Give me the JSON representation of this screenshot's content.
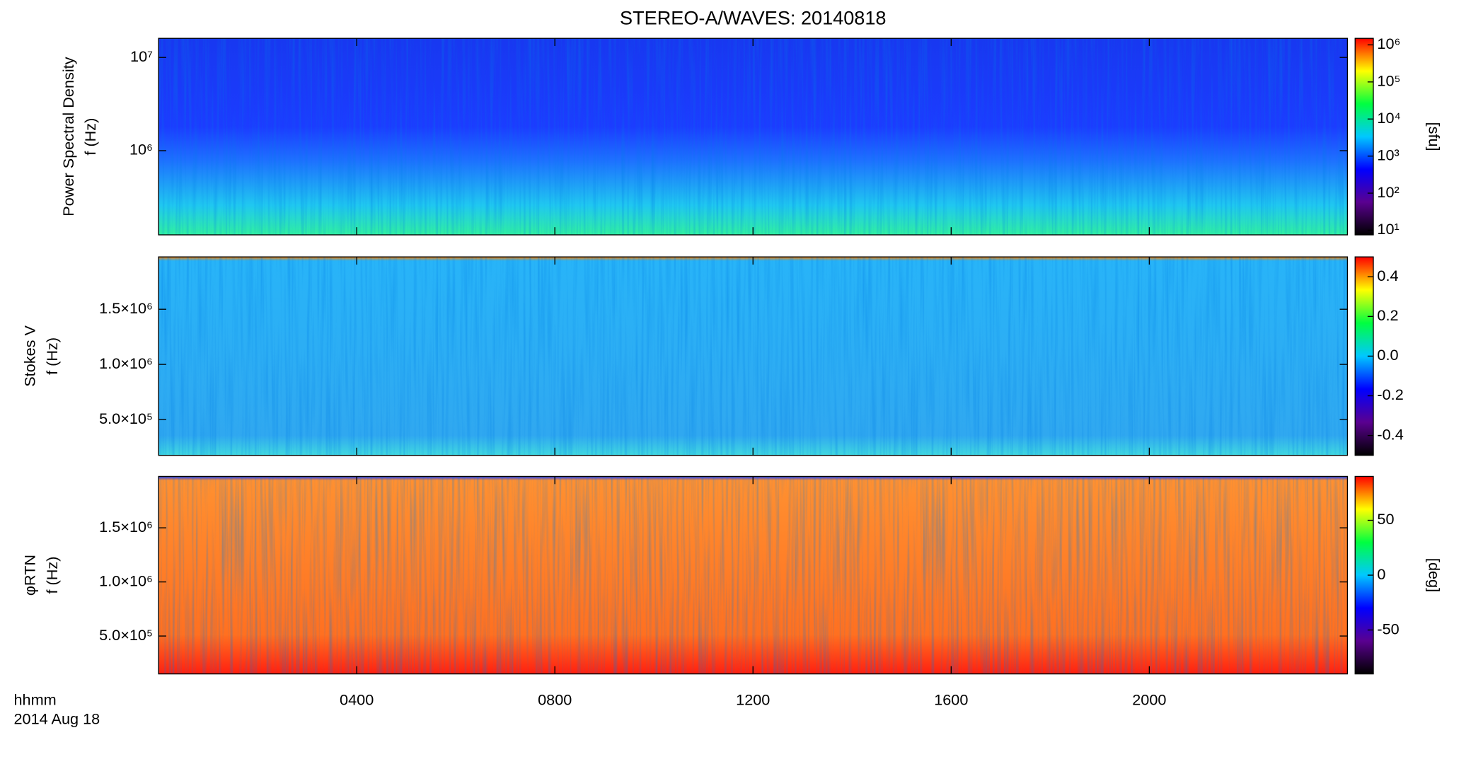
{
  "chart_data": [
    {
      "type": "heatmap",
      "title": "STEREO-A/WAVES: 20140818",
      "ylabel": [
        "Power Spectral Density",
        "f (Hz)"
      ],
      "ylog": true,
      "ylim": [
        125000,
        16025000
      ],
      "yticks": [
        {
          "value": 1000000,
          "label": "10⁶"
        },
        {
          "value": 10000000,
          "label": "10⁷"
        }
      ],
      "colormap": [
        "#000000",
        "#5a0090",
        "#0000ff",
        "#00c8ff",
        "#00ff40",
        "#ffff00",
        "#ff0000"
      ],
      "colorbar": {
        "label": "[sfu]",
        "log": true,
        "clim": [
          7.5,
          1500000
        ],
        "ticks": [
          {
            "value": 10,
            "label": "10¹"
          },
          {
            "value": 100,
            "label": "10²"
          },
          {
            "value": 1000,
            "label": "10³"
          },
          {
            "value": 10000,
            "label": "10⁴"
          },
          {
            "value": 100000,
            "label": "10⁵"
          },
          {
            "value": 1000000,
            "label": "10⁶"
          }
        ]
      }
    },
    {
      "type": "heatmap",
      "ylabel": [
        "Stokes V",
        "f (Hz)"
      ],
      "ylog": false,
      "ylim": [
        175000,
        1975000
      ],
      "yticks": [
        {
          "value": 500000,
          "label": "5.0×10⁵"
        },
        {
          "value": 1000000,
          "label": "1.0×10⁶"
        },
        {
          "value": 1500000,
          "label": "1.5×10⁶"
        }
      ],
      "colorbar": {
        "log": false,
        "clim": [
          -0.5,
          0.5
        ],
        "ticks": [
          -0.4,
          -0.2,
          {
            "value": 0,
            "label": "0.0"
          },
          0.2,
          0.4
        ]
      }
    },
    {
      "type": "heatmap",
      "ylabel": [
        "φRTN",
        "f (Hz)"
      ],
      "ylog": false,
      "ylim": [
        150000,
        1975000
      ],
      "yticks": [
        {
          "value": 500000,
          "label": "5.0×10⁵"
        },
        {
          "value": 1000000,
          "label": "1.0×10⁶"
        },
        {
          "value": 1500000,
          "label": "1.5×10⁶"
        }
      ],
      "colorbar": {
        "label": "[deg]",
        "log": false,
        "clim": [
          -90,
          90
        ],
        "ticks": [
          -50,
          0,
          50
        ]
      },
      "xlabel": "hhmm",
      "date": "2014 Aug 18",
      "xlim": [
        0,
        24
      ],
      "xticks": [
        {
          "value": 4,
          "label": "0400"
        },
        {
          "value": 8,
          "label": "0800"
        },
        {
          "value": 12,
          "label": "1200"
        },
        {
          "value": 16,
          "label": "1600"
        },
        {
          "value": 20,
          "label": "2000"
        }
      ]
    }
  ]
}
